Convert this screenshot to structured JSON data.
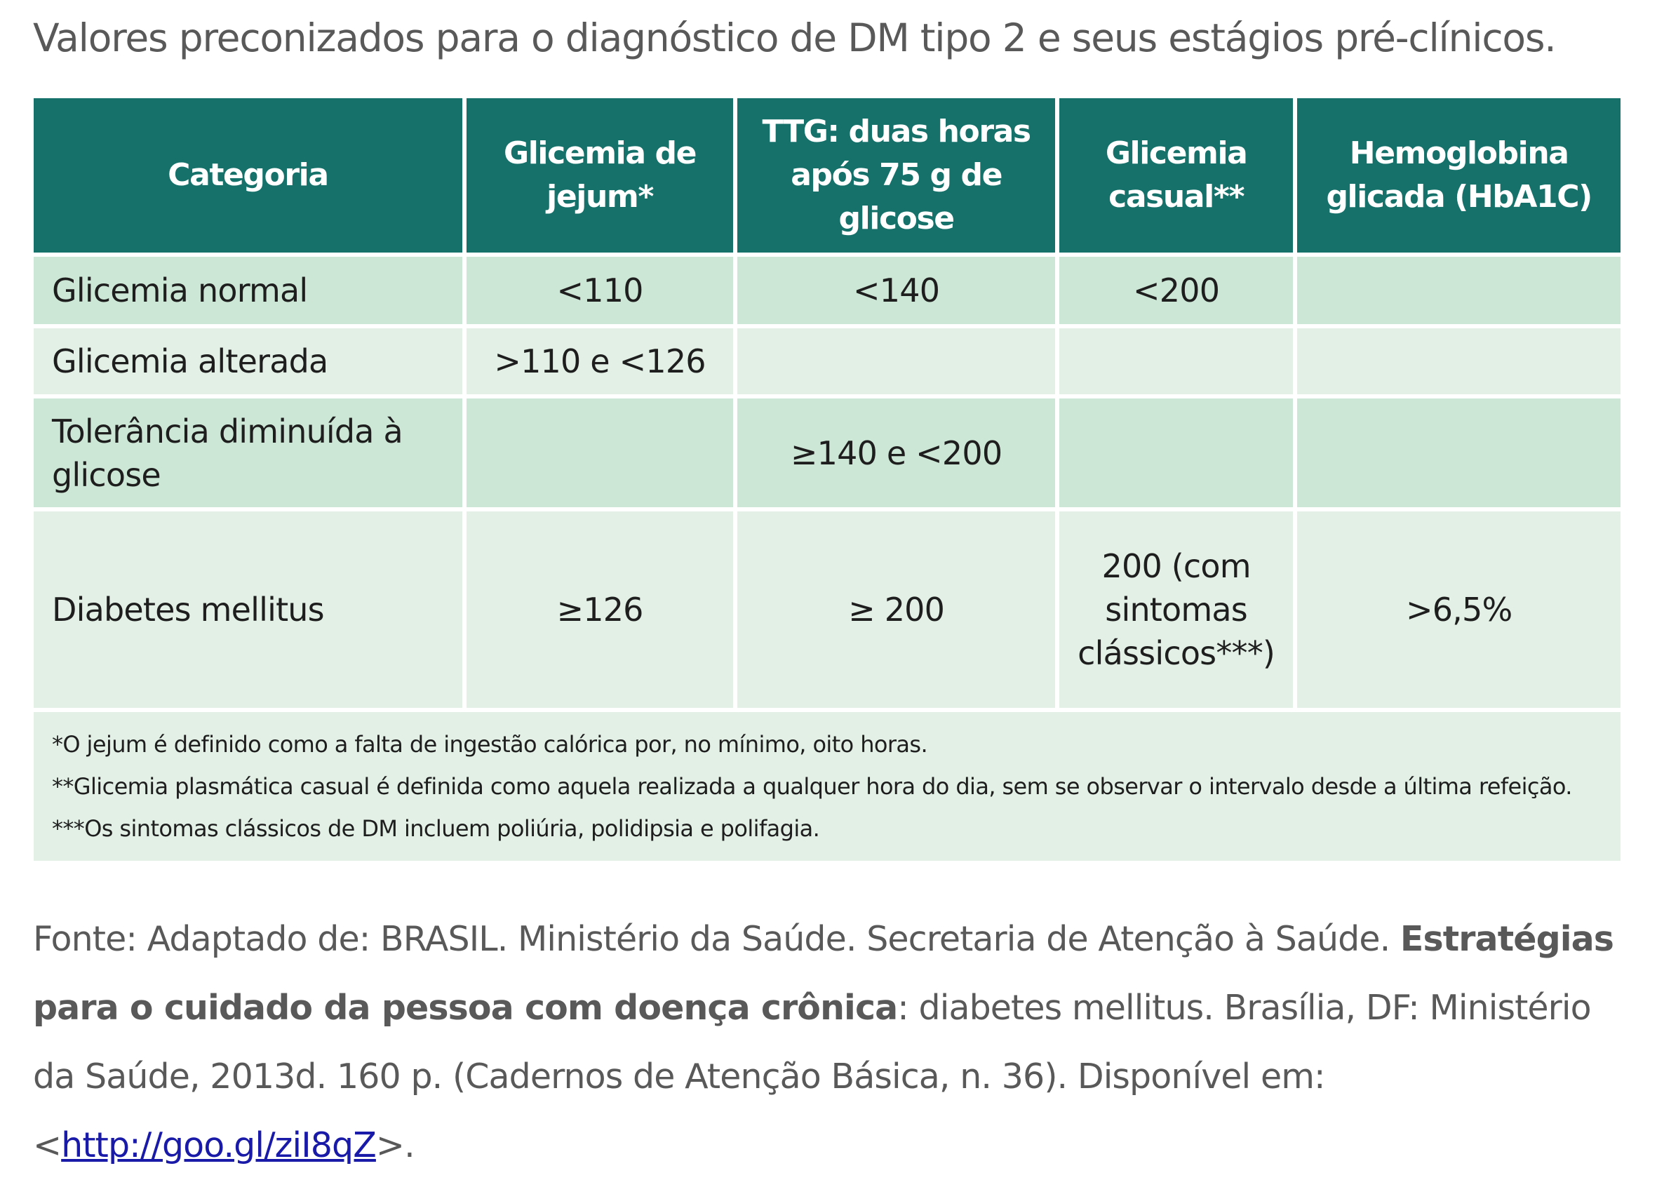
{
  "title": "Valores preconizados para o diagnóstico de DM tipo 2 e seus estágios pré-clínicos.",
  "table": {
    "headers": [
      "Categoria",
      "Glicemia de jejum*",
      "TTG: duas horas após 75 g de glicose",
      "Glicemia casual**",
      "Hemoglobina glicada (HbA1C)"
    ],
    "rows": [
      [
        "Glicemia normal",
        "<110",
        "<140",
        "<200",
        ""
      ],
      [
        "Glicemia alterada",
        ">110 e <126",
        "",
        "",
        ""
      ],
      [
        "Tolerância diminuída à glicose",
        "",
        "≥140 e <200",
        "",
        ""
      ],
      [
        "Diabetes mellitus",
        "≥126",
        "≥ 200",
        "200 (com sintomas clássicos***)",
        ">6,5%"
      ]
    ],
    "notes": [
      "*O jejum é definido como a falta de ingestão calórica por, no mínimo, oito horas.",
      "**Glicemia plasmática casual é definida como aquela realizada a qualquer hora do dia, sem se observar o intervalo desde a última refeição.",
      "***Os sintomas clássicos de DM incluem poliúria, polidipsia e polifagia."
    ]
  },
  "source": {
    "prefix": "Fonte: Adaptado de: BRASIL. Ministério da Saúde. Secretaria de Atenção à Saúde. ",
    "bold_title": "Estratégias para o cuidado da pessoa com doença crônica",
    "middle": ": diabetes mellitus. Brasília, DF: Ministério da Saúde, 2013d. 160 p. (Cadernos de Atenção Básica, n. 36). Disponível em: <",
    "link_text": "http://goo.gl/ziI8qZ",
    "suffix": ">."
  },
  "colors": {
    "header_bg": "#16716a",
    "row_dark": "#cde7d6",
    "row_light": "#e3f0e6",
    "link": "#1a1aa8"
  }
}
